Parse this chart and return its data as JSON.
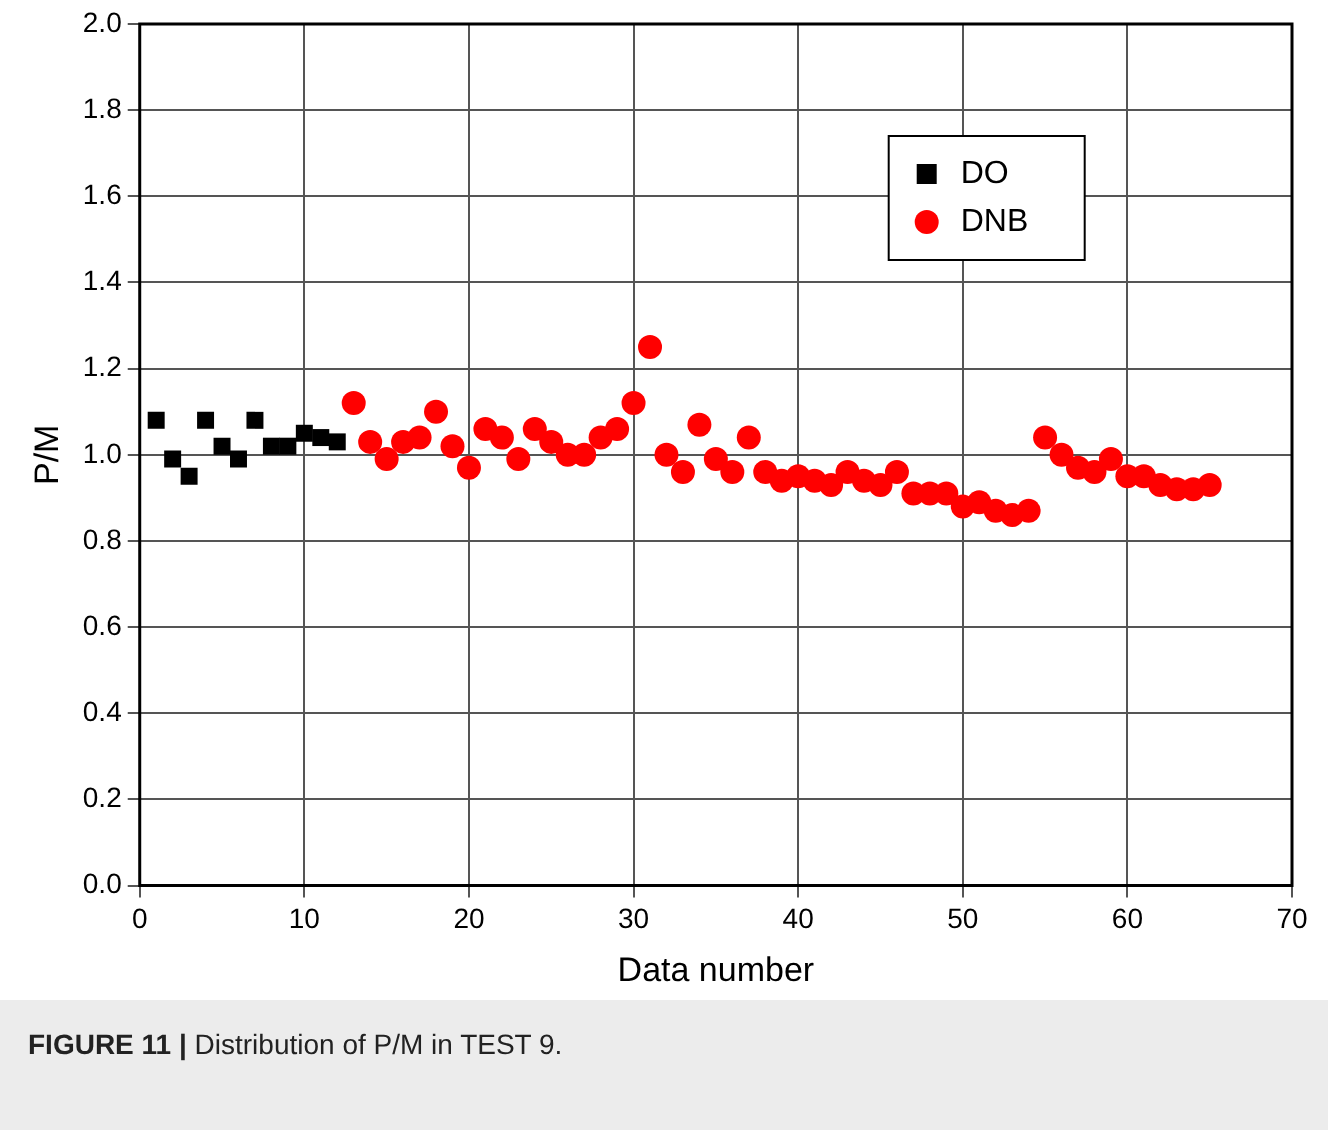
{
  "chart_data": {
    "type": "scatter",
    "xlabel": "Data number",
    "ylabel": "P/M",
    "xlim": [
      0,
      70
    ],
    "xticks": [
      0,
      10,
      20,
      30,
      40,
      50,
      60,
      70
    ],
    "ylim": [
      0,
      2
    ],
    "yticks": [
      {
        "value": 0,
        "label": "0.0"
      },
      {
        "value": 0.2,
        "label": "0.2"
      },
      {
        "value": 0.4,
        "label": "0.4"
      },
      {
        "value": 0.6,
        "label": "0.6"
      },
      {
        "value": 0.8,
        "label": "0.8"
      },
      {
        "value": 1,
        "label": "1.0"
      },
      {
        "value": 1.2,
        "label": "1.2"
      },
      {
        "value": 1.4,
        "label": "1.4"
      },
      {
        "value": 1.6,
        "label": "1.6"
      },
      {
        "value": 1.8,
        "label": "1.8"
      },
      {
        "value": 2,
        "label": "2.0"
      }
    ],
    "grid": true,
    "legend": "top right",
    "annotations": [
      "FIGURE 11 | Distribution of P/M in TEST 9."
    ],
    "series": [
      {
        "name": "DO",
        "color": "#000000",
        "marker": "square",
        "x": [
          1,
          2,
          3,
          4,
          5,
          6,
          7,
          8,
          9,
          10,
          11,
          12
        ],
        "values": [
          1.08,
          0.99,
          0.95,
          1.08,
          1.02,
          0.99,
          1.08,
          1.02,
          1.02,
          1.05,
          1.04,
          1.03
        ]
      },
      {
        "name": "DNB",
        "color": "#ff0000",
        "marker": "circle",
        "x": [
          13,
          14,
          15,
          16,
          17,
          18,
          19,
          20,
          21,
          22,
          23,
          24,
          25,
          26,
          27,
          28,
          29,
          30,
          31,
          32,
          33,
          34,
          35,
          36,
          37,
          38,
          39,
          40,
          41,
          42,
          43,
          44,
          45,
          46,
          47,
          48,
          49,
          50,
          51,
          52,
          53,
          54,
          55,
          56,
          57,
          58,
          59,
          60,
          61,
          62,
          63,
          64,
          65
        ],
        "values": [
          1.12,
          1.03,
          0.99,
          1.03,
          1.04,
          1.1,
          1.02,
          0.97,
          1.06,
          1.04,
          0.99,
          1.06,
          1.03,
          1.0,
          1.0,
          1.04,
          1.06,
          1.12,
          1.25,
          1.0,
          0.96,
          1.07,
          0.99,
          0.96,
          1.04,
          0.96,
          0.94,
          0.95,
          0.94,
          0.93,
          0.96,
          0.94,
          0.93,
          0.96,
          0.91,
          0.91,
          0.91,
          0.88,
          0.89,
          0.87,
          0.86,
          0.87,
          1.04,
          1.0,
          0.97,
          0.96,
          0.99,
          0.95,
          0.95,
          0.93,
          0.92,
          0.92,
          0.93
        ]
      }
    ]
  }
}
